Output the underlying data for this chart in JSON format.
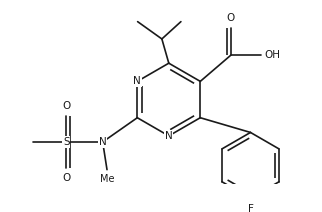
{
  "bg_color": "#ffffff",
  "line_color": "#1a1a1a",
  "line_width": 1.2,
  "font_size": 7.5,
  "figsize": [
    3.22,
    2.12
  ],
  "dpi": 100,
  "xlim": [
    0,
    322
  ],
  "ylim": [
    0,
    212
  ]
}
